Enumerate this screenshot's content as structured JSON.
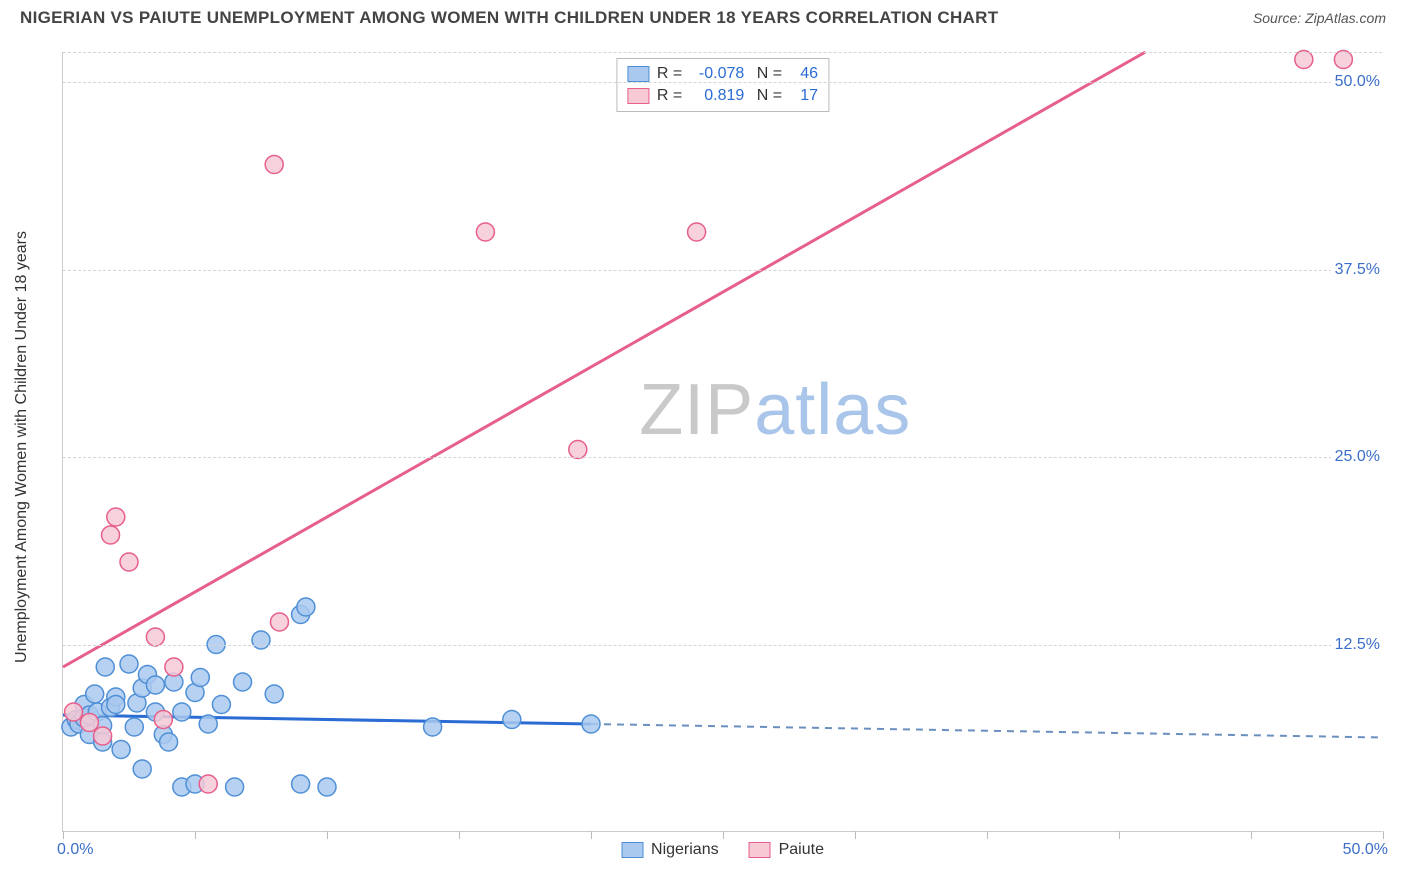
{
  "header": {
    "title": "NIGERIAN VS PAIUTE UNEMPLOYMENT AMONG WOMEN WITH CHILDREN UNDER 18 YEARS CORRELATION CHART",
    "source": "Source: ZipAtlas.com"
  },
  "watermark": {
    "part1": "ZIP",
    "part2": "atlas"
  },
  "chart": {
    "type": "scatter",
    "y_axis_label": "Unemployment Among Women with Children Under 18 years",
    "xlim": [
      0,
      50
    ],
    "ylim": [
      0,
      52
    ],
    "x_ticks": [
      0,
      5,
      10,
      15,
      20,
      25,
      30,
      35,
      40,
      45,
      50
    ],
    "x_tick_labels": {
      "min": "0.0%",
      "max": "50.0%"
    },
    "y_gridlines": [
      12.5,
      25.0,
      37.5,
      50.0,
      52.0
    ],
    "y_tick_labels": [
      "12.5%",
      "25.0%",
      "37.5%",
      "50.0%"
    ],
    "background_color": "#ffffff",
    "grid_color": "#d5d5d5",
    "axis_color": "#cccccc",
    "tick_label_color": "#3b6fc9",
    "series": [
      {
        "name": "Nigerians",
        "marker_color_fill": "#a9c9ef",
        "marker_color_stroke": "#4f8fd6",
        "marker_radius": 9,
        "line_color": "#2b6cd4",
        "line_width": 3,
        "line_dash_extension_color": "#6a8fbf",
        "R": "-0.078",
        "N": "46",
        "regression": {
          "x1": 0,
          "y1": 7.8,
          "x2": 20,
          "y2": 7.2,
          "ext_x2": 50,
          "ext_y2": 6.3
        },
        "points": [
          [
            0.3,
            7.0
          ],
          [
            0.5,
            7.5
          ],
          [
            0.6,
            7.2
          ],
          [
            0.8,
            8.5
          ],
          [
            0.8,
            7.6
          ],
          [
            1.0,
            6.5
          ],
          [
            1.0,
            7.8
          ],
          [
            1.2,
            9.2
          ],
          [
            1.3,
            8.0
          ],
          [
            1.5,
            7.1
          ],
          [
            1.5,
            6.0
          ],
          [
            1.6,
            11.0
          ],
          [
            1.8,
            8.3
          ],
          [
            2.0,
            9.0
          ],
          [
            2.0,
            8.5
          ],
          [
            2.2,
            5.5
          ],
          [
            2.5,
            11.2
          ],
          [
            2.7,
            7.0
          ],
          [
            2.8,
            8.6
          ],
          [
            3.0,
            9.6
          ],
          [
            3.0,
            4.2
          ],
          [
            3.2,
            10.5
          ],
          [
            3.5,
            8.0
          ],
          [
            3.5,
            9.8
          ],
          [
            3.8,
            6.5
          ],
          [
            4.0,
            6.0
          ],
          [
            4.2,
            10.0
          ],
          [
            4.5,
            8.0
          ],
          [
            4.5,
            3.0
          ],
          [
            5.0,
            9.3
          ],
          [
            5.0,
            3.2
          ],
          [
            5.2,
            10.3
          ],
          [
            5.5,
            7.2
          ],
          [
            5.8,
            12.5
          ],
          [
            6.0,
            8.5
          ],
          [
            6.5,
            3.0
          ],
          [
            6.8,
            10.0
          ],
          [
            7.5,
            12.8
          ],
          [
            8.0,
            9.2
          ],
          [
            9.0,
            3.2
          ],
          [
            9.0,
            14.5
          ],
          [
            9.2,
            15.0
          ],
          [
            10.0,
            3.0
          ],
          [
            14.0,
            7.0
          ],
          [
            17.0,
            7.5
          ],
          [
            20.0,
            7.2
          ]
        ]
      },
      {
        "name": "Paiute",
        "marker_color_fill": "#f6c9d5",
        "marker_color_stroke": "#e75f8b",
        "marker_radius": 9,
        "line_color": "#e75f8b",
        "line_width": 3,
        "R": "0.819",
        "N": "17",
        "regression": {
          "x1": 0,
          "y1": 11.0,
          "x2": 41,
          "y2": 52.0
        },
        "points": [
          [
            0.4,
            8.0
          ],
          [
            1.0,
            7.3
          ],
          [
            1.5,
            6.4
          ],
          [
            1.8,
            19.8
          ],
          [
            2.0,
            21.0
          ],
          [
            2.5,
            18.0
          ],
          [
            3.5,
            13.0
          ],
          [
            3.8,
            7.5
          ],
          [
            4.2,
            11.0
          ],
          [
            5.5,
            3.2
          ],
          [
            8.0,
            44.5
          ],
          [
            8.2,
            14.0
          ],
          [
            16.0,
            40.0
          ],
          [
            19.5,
            25.5
          ],
          [
            24.0,
            40.0
          ],
          [
            47.0,
            51.5
          ],
          [
            48.5,
            51.5
          ]
        ]
      }
    ],
    "bottom_legend": [
      "Nigerians",
      "Paiute"
    ]
  }
}
